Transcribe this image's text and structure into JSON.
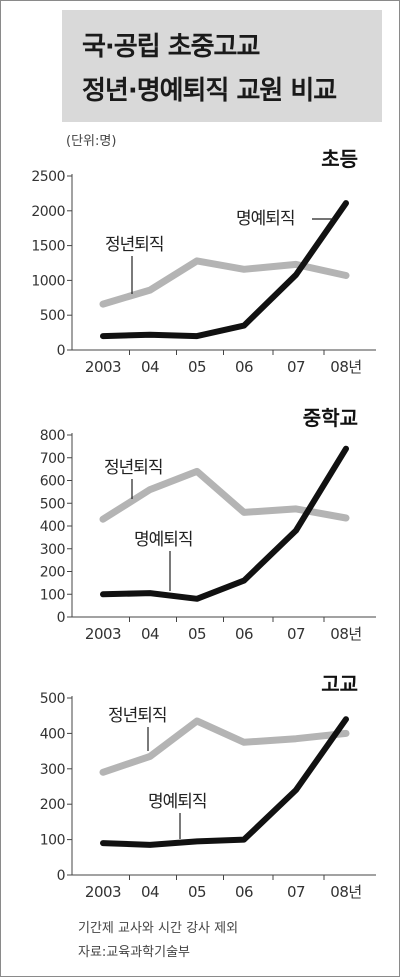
{
  "header": {
    "title_line1": "국·공립 초중고교",
    "title_line2": "정년·명예퇴직 교원 비교",
    "unit": "(단위:명)"
  },
  "footer": {
    "note": "기간제 교사와 시간 강사 제외",
    "source": "자료:교육과학기술부"
  },
  "colors": {
    "series_retire": "#b4b4b4",
    "series_honorary": "#111111",
    "axis": "#444444"
  },
  "chart_data": [
    {
      "type": "line",
      "title": "초등",
      "categories": [
        "2003",
        "04",
        "05",
        "06",
        "07",
        "08년"
      ],
      "ylim": [
        0,
        2500
      ],
      "yticks": [
        0,
        500,
        1000,
        1500,
        2000,
        2500
      ],
      "series": [
        {
          "name": "정년퇴직",
          "values": [
            660,
            860,
            1280,
            1160,
            1230,
            1070
          ]
        },
        {
          "name": "명예퇴직",
          "values": [
            200,
            220,
            200,
            350,
            1080,
            2110
          ]
        }
      ]
    },
    {
      "type": "line",
      "title": "중학교",
      "categories": [
        "2003",
        "04",
        "05",
        "06",
        "07",
        "08년"
      ],
      "ylim": [
        0,
        800
      ],
      "yticks": [
        0,
        100,
        200,
        300,
        400,
        500,
        600,
        700,
        800
      ],
      "series": [
        {
          "name": "정년퇴직",
          "values": [
            430,
            560,
            640,
            460,
            475,
            435
          ]
        },
        {
          "name": "명예퇴직",
          "values": [
            100,
            105,
            80,
            160,
            380,
            740
          ]
        }
      ]
    },
    {
      "type": "line",
      "title": "고교",
      "categories": [
        "2003",
        "04",
        "05",
        "06",
        "07",
        "08년"
      ],
      "ylim": [
        0,
        500
      ],
      "yticks": [
        0,
        100,
        200,
        300,
        400,
        500
      ],
      "series": [
        {
          "name": "정년퇴직",
          "values": [
            290,
            335,
            435,
            375,
            385,
            400
          ]
        },
        {
          "name": "명예퇴직",
          "values": [
            90,
            85,
            95,
            100,
            240,
            440
          ]
        }
      ]
    }
  ]
}
